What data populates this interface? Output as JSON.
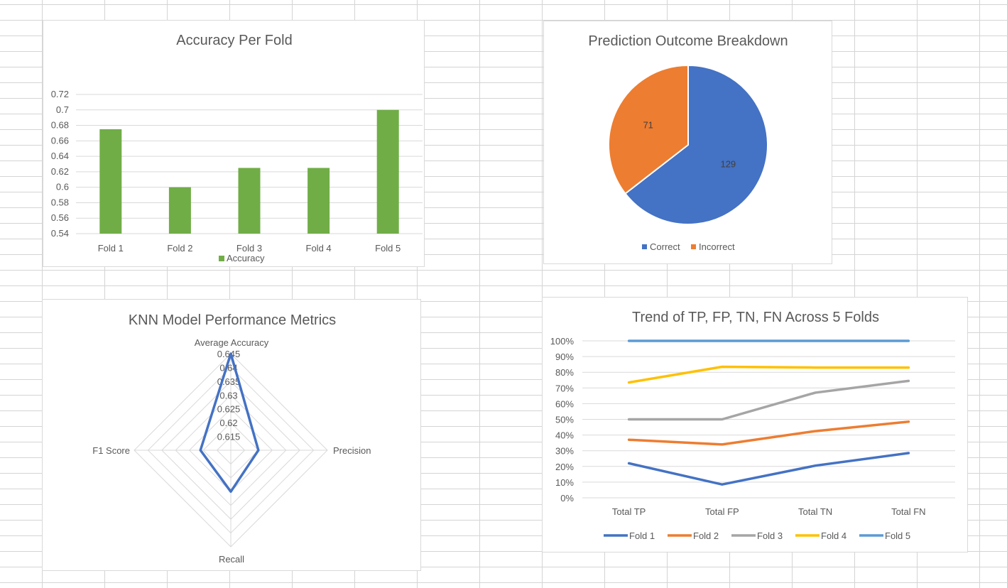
{
  "chart_data": [
    {
      "type": "bar",
      "title": "Accuracy Per Fold",
      "categories": [
        "Fold 1",
        "Fold 2",
        "Fold 3",
        "Fold 4",
        "Fold 5"
      ],
      "series": [
        {
          "name": "Accuracy",
          "values": [
            0.675,
            0.6,
            0.625,
            0.625,
            0.7
          ]
        }
      ],
      "ylim": [
        0.54,
        0.72
      ],
      "yticks": [
        "0.54",
        "0.56",
        "0.58",
        "0.6",
        "0.62",
        "0.64",
        "0.66",
        "0.68",
        "0.7",
        "0.72"
      ],
      "grid": true,
      "legend": "bottom",
      "colors": [
        "#70ad47"
      ]
    },
    {
      "type": "pie",
      "title": "Prediction Outcome Breakdown",
      "categories": [
        "Correct",
        "Incorrect"
      ],
      "values": [
        129,
        71
      ],
      "data_labels": [
        "129",
        "71"
      ],
      "legend": "bottom",
      "colors": [
        "#4472c4",
        "#ed7d31"
      ]
    },
    {
      "type": "radar",
      "title": "KNN Model Performance Metrics",
      "categories": [
        "Average Accuracy",
        "Precision",
        "Recall",
        "F1 Score"
      ],
      "series": [
        {
          "name": "",
          "values": [
            0.645,
            0.62,
            0.625,
            0.621
          ]
        }
      ],
      "rlim": [
        0.61,
        0.645
      ],
      "rticks": [
        "0.615",
        "0.62",
        "0.625",
        "0.63",
        "0.635",
        "0.64",
        "0.645"
      ],
      "colors": [
        "#4472c4"
      ]
    },
    {
      "type": "line",
      "title": "Trend of TP, FP, TN, FN Across 5 Folds",
      "categories": [
        "Total TP",
        "Total FP",
        "Total TN",
        "Total FN"
      ],
      "series": [
        {
          "name": "Fold 1",
          "values": [
            0.22,
            0.085,
            0.205,
            0.285
          ]
        },
        {
          "name": "Fold 2",
          "values": [
            0.37,
            0.34,
            0.425,
            0.485
          ]
        },
        {
          "name": "Fold 3",
          "values": [
            0.5,
            0.5,
            0.67,
            0.745
          ]
        },
        {
          "name": "Fold 4",
          "values": [
            0.735,
            0.835,
            0.83,
            0.83
          ]
        },
        {
          "name": "Fold 5",
          "values": [
            1.0,
            1.0,
            1.0,
            1.0
          ]
        }
      ],
      "ylim": [
        0,
        1
      ],
      "yticks": [
        "0%",
        "10%",
        "20%",
        "30%",
        "40%",
        "50%",
        "60%",
        "70%",
        "80%",
        "90%",
        "100%"
      ],
      "grid": true,
      "legend": "bottom",
      "colors": [
        "#4472c4",
        "#ed7d31",
        "#a5a5a5",
        "#ffc000",
        "#5b9bd5"
      ]
    }
  ]
}
